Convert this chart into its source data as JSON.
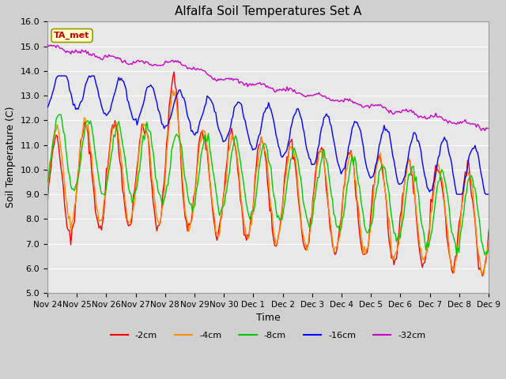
{
  "title": "Alfalfa Soil Temperatures Set A",
  "ylabel": "Soil Temperature (C)",
  "xlabel": "Time",
  "ylim": [
    5.0,
    16.0
  ],
  "yticks": [
    5.0,
    6.0,
    7.0,
    8.0,
    9.0,
    10.0,
    11.0,
    12.0,
    13.0,
    14.0,
    15.0,
    16.0
  ],
  "xtick_labels": [
    "Nov 24",
    "Nov 25",
    "Nov 26",
    "Nov 27",
    "Nov 28",
    "Nov 29",
    "Nov 30",
    "Dec 1",
    "Dec 2",
    "Dec 3",
    "Dec 4",
    "Dec 5",
    "Dec 6",
    "Dec 7",
    "Dec 8",
    "Dec 9"
  ],
  "colors": {
    "-2cm": "#ff0000",
    "-4cm": "#ff8c00",
    "-8cm": "#00cc00",
    "-16cm": "#0000ff",
    "-32cm": "#cc00cc"
  },
  "legend_label": "TA_met",
  "title_fontsize": 11,
  "label_fontsize": 9,
  "tick_fontsize": 8
}
